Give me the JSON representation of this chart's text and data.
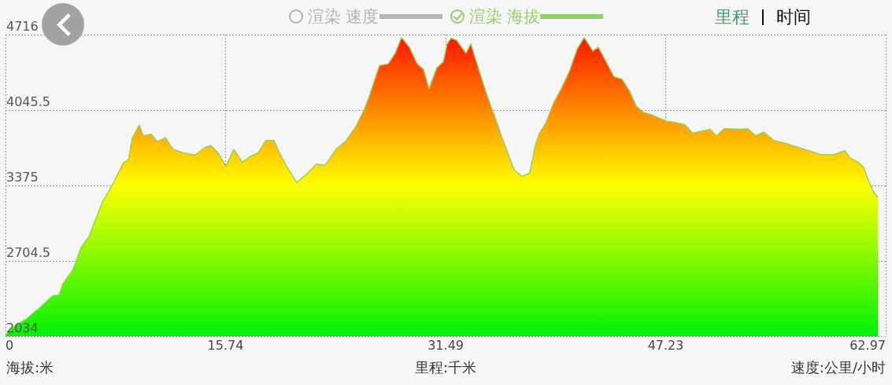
{
  "chart_data": {
    "type": "area",
    "xlabel": "里程:千米",
    "annotations": [
      "海拔:米",
      "速度:公里/小时",
      "里程",
      "时间"
    ],
    "x": [
      0,
      0.73,
      1.46,
      2.42,
      3.38,
      3.83,
      4.11,
      4.84,
      5.41,
      5.97,
      6.93,
      7.66,
      8.45,
      8.79,
      9.07,
      9.57,
      9.86,
      10.42,
      10.87,
      11.43,
      12.0,
      12.73,
      13.57,
      14.25,
      14.7,
      15.2,
      15.77,
      16.33,
      16.95,
      17.46,
      18.08,
      18.64,
      19.2,
      19.6,
      20.16,
      20.84,
      21.57,
      22.25,
      22.87,
      23.65,
      24.39,
      25.12,
      25.63,
      25.96,
      26.75,
      27.37,
      27.88,
      28.33,
      28.89,
      29.46,
      29.91,
      30.3,
      30.86,
      31.32,
      31.6,
      31.88,
      32.27,
      32.95,
      33.29,
      33.79,
      34.41,
      34.92,
      35.48,
      35.93,
      36.38,
      36.95,
      37.51,
      37.9,
      38.19,
      38.64,
      39.2,
      39.76,
      40.33,
      40.89,
      41.4,
      42.02,
      42.41,
      42.97,
      43.54,
      44.1,
      44.66,
      45.12,
      45.62,
      46.18,
      46.75,
      47.31,
      47.65,
      48.6,
      49.17,
      50.41,
      50.86,
      51.42,
      52.55,
      53.11,
      53.68,
      54.24,
      54.97,
      55.76,
      56.66,
      57.45,
      58.35,
      59.31,
      60.04,
      60.43,
      61.0,
      61.39,
      61.73,
      62.12,
      62.41
    ],
    "series": [
      {
        "name": "渲染 速度",
        "color": "#b3b3b3",
        "values": [
          null,
          null,
          null,
          null,
          null,
          null,
          null,
          null,
          null,
          null,
          null,
          null,
          null,
          null,
          null,
          null,
          null,
          null,
          null,
          null,
          null,
          null,
          null,
          null,
          null,
          null,
          null,
          null,
          null,
          null,
          null,
          null,
          null,
          null,
          null,
          null,
          null,
          null,
          null,
          null,
          null,
          null,
          null,
          null,
          null,
          null,
          null,
          null,
          null,
          null,
          null,
          null,
          null,
          null,
          null,
          null,
          null,
          null,
          null,
          null,
          null,
          null,
          null,
          null,
          null,
          null,
          null,
          null,
          null,
          null,
          null,
          null,
          null,
          null,
          null,
          null,
          null,
          null,
          null,
          null,
          null,
          null,
          null,
          null,
          null,
          null,
          null,
          null,
          null,
          null,
          null,
          null,
          null,
          null,
          null,
          null,
          null,
          null,
          null,
          null,
          null,
          null,
          null,
          null,
          null,
          null,
          null,
          null,
          null
        ]
      },
      {
        "name": "渲染 海拔",
        "color": "#94cf6b",
        "values": [
          2050,
          2135,
          2185,
          2285,
          2395,
          2400,
          2500,
          2630,
          2825,
          2920,
          3225,
          3380,
          3580,
          3600,
          3795,
          3910,
          3815,
          3830,
          3765,
          3800,
          3695,
          3665,
          3645,
          3710,
          3730,
          3665,
          3545,
          3695,
          3580,
          3630,
          3665,
          3775,
          3775,
          3665,
          3535,
          3400,
          3480,
          3565,
          3555,
          3695,
          3775,
          3910,
          4040,
          4145,
          4440,
          4455,
          4550,
          4690,
          4605,
          4455,
          4405,
          4235,
          4420,
          4475,
          4635,
          4685,
          4665,
          4550,
          4635,
          4435,
          4190,
          4015,
          3815,
          3665,
          3515,
          3455,
          3485,
          3730,
          3840,
          3925,
          4105,
          4235,
          4385,
          4585,
          4690,
          4570,
          4605,
          4475,
          4340,
          4320,
          4210,
          4080,
          4025,
          4005,
          3975,
          3945,
          3940,
          3915,
          3840,
          3875,
          3815,
          3880,
          3875,
          3880,
          3815,
          3850,
          3775,
          3750,
          3715,
          3685,
          3650,
          3650,
          3685,
          3620,
          3580,
          3535,
          3420,
          3315,
          3270
        ]
      }
    ],
    "xlim": [
      0,
      62.97
    ],
    "xticks": [
      0,
      15.74,
      31.49,
      47.23,
      62.97
    ],
    "ylim": [
      2034,
      4716
    ],
    "yticks": [
      2034,
      2704.5,
      3375,
      4045.5,
      4716
    ],
    "grid": true,
    "legend": "top",
    "marker": "none"
  }
}
